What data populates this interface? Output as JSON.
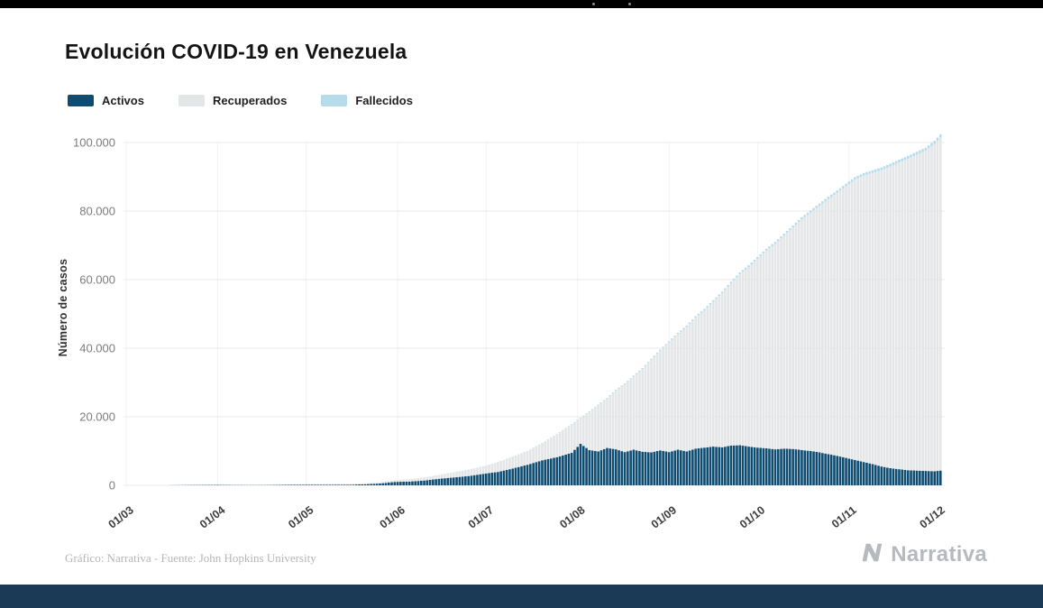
{
  "header": {
    "title": "Evolución COVID-19 en Venezuela"
  },
  "legend": [
    {
      "label": "Activos"
    },
    {
      "label": "Recuperados"
    },
    {
      "label": "Fallecidos"
    }
  ],
  "footer": {
    "credit": "Gráfico: Narrativa - Fuente: John Hopkins University",
    "brand": "Narrativa"
  },
  "chart_data": {
    "type": "area",
    "stacked": true,
    "title": "Evolución COVID-19 en Venezuela",
    "xlabel": "",
    "ylabel": "Número de casos",
    "ylim": [
      0,
      100000
    ],
    "grid": true,
    "legend_position": "top-left",
    "yticks": [
      {
        "value": 0,
        "label": "0"
      },
      {
        "value": 20000,
        "label": "20.000"
      },
      {
        "value": 40000,
        "label": "40.000"
      },
      {
        "value": 60000,
        "label": "60.000"
      },
      {
        "value": 80000,
        "label": "80.000"
      },
      {
        "value": 100000,
        "label": "100.000"
      }
    ],
    "xticks": [
      {
        "day": 0,
        "label": "01/03"
      },
      {
        "day": 31,
        "label": "01/04"
      },
      {
        "day": 61,
        "label": "01/05"
      },
      {
        "day": 92,
        "label": "01/06"
      },
      {
        "day": 122,
        "label": "01/07"
      },
      {
        "day": 153,
        "label": "01/08"
      },
      {
        "day": 184,
        "label": "01/09"
      },
      {
        "day": 214,
        "label": "01/10"
      },
      {
        "day": 245,
        "label": "01/11"
      },
      {
        "day": 275,
        "label": "01/12"
      }
    ],
    "series": [
      {
        "name": "Activos",
        "color": "#0f4c72"
      },
      {
        "name": "Recuperados",
        "color": "#e4e5e7"
      },
      {
        "name": "Fallecidos",
        "color": "#b6dcec"
      }
    ],
    "points_format": [
      "day_offset_from_01/03",
      "activos",
      "recuperados",
      "fallecidos"
    ],
    "points": [
      [
        0,
        0,
        0,
        0
      ],
      [
        12,
        2,
        0,
        0
      ],
      [
        14,
        17,
        0,
        0
      ],
      [
        17,
        36,
        0,
        0
      ],
      [
        21,
        69,
        1,
        0
      ],
      [
        26,
        92,
        14,
        1
      ],
      [
        31,
        120,
        20,
        3
      ],
      [
        36,
        95,
        64,
        7
      ],
      [
        41,
        80,
        92,
        9
      ],
      [
        46,
        75,
        120,
        9
      ],
      [
        51,
        105,
        142,
        9
      ],
      [
        56,
        140,
        161,
        10
      ],
      [
        61,
        190,
        157,
        10
      ],
      [
        66,
        170,
        208,
        10
      ],
      [
        71,
        175,
        238,
        10
      ],
      [
        76,
        180,
        265,
        10
      ],
      [
        81,
        320,
        288,
        10
      ],
      [
        86,
        530,
        342,
        10
      ],
      [
        91,
        990,
        506,
        14
      ],
      [
        96,
        1100,
        701,
        18
      ],
      [
        101,
        1400,
        896,
        20
      ],
      [
        106,
        1900,
        1136,
        26
      ],
      [
        111,
        2300,
        1456,
        33
      ],
      [
        116,
        2700,
        1824,
        39
      ],
      [
        121,
        3350,
        2132,
        48
      ],
      [
        126,
        3900,
        2788,
        62
      ],
      [
        131,
        4900,
        3392,
        80
      ],
      [
        136,
        6000,
        3914,
        96
      ],
      [
        141,
        7300,
        4918,
        116
      ],
      [
        146,
        8200,
        6591,
        138
      ],
      [
        151,
        9500,
        8201,
        158
      ],
      [
        154,
        12100,
        7428,
        172
      ],
      [
        157,
        10300,
        11114,
        186
      ],
      [
        160,
        9900,
        13400,
        200
      ],
      [
        163,
        10900,
        14386,
        214
      ],
      [
        166,
        10500,
        17170,
        230
      ],
      [
        169,
        9700,
        19754,
        246
      ],
      [
        172,
        10400,
        21338,
        262
      ],
      [
        175,
        9800,
        24122,
        278
      ],
      [
        178,
        9600,
        27005,
        295
      ],
      [
        181,
        10200,
        29085,
        315
      ],
      [
        184,
        9700,
        31965,
        335
      ],
      [
        187,
        10400,
        33745,
        355
      ],
      [
        190,
        9900,
        36325,
        375
      ],
      [
        193,
        10700,
        38205,
        395
      ],
      [
        196,
        11000,
        40092,
        408
      ],
      [
        199,
        11300,
        42278,
        422
      ],
      [
        202,
        11100,
        44960,
        440
      ],
      [
        205,
        11600,
        47338,
        462
      ],
      [
        208,
        11700,
        49914,
        486
      ],
      [
        211,
        11300,
        52395,
        505
      ],
      [
        214,
        11000,
        55076,
        524
      ],
      [
        217,
        10800,
        57658,
        542
      ],
      [
        220,
        10500,
        59942,
        558
      ],
      [
        223,
        10700,
        62122,
        578
      ],
      [
        226,
        10600,
        64585,
        615
      ],
      [
        229,
        10300,
        67255,
        645
      ],
      [
        232,
        10000,
        69540,
        660
      ],
      [
        235,
        9600,
        71925,
        675
      ],
      [
        238,
        9100,
        74405,
        695
      ],
      [
        241,
        8600,
        76690,
        710
      ],
      [
        244,
        8000,
        79274,
        726
      ],
      [
        247,
        7400,
        81758,
        742
      ],
      [
        250,
        6800,
        83538,
        762
      ],
      [
        253,
        6200,
        84925,
        775
      ],
      [
        256,
        5500,
        86414,
        786
      ],
      [
        259,
        5000,
        88000,
        800
      ],
      [
        262,
        4700,
        89485,
        815
      ],
      [
        265,
        4400,
        90874,
        826
      ],
      [
        268,
        4300,
        92162,
        838
      ],
      [
        271,
        4200,
        93450,
        850
      ],
      [
        274,
        4100,
        95528,
        872
      ],
      [
        276,
        4300,
        97207,
        893
      ]
    ]
  }
}
